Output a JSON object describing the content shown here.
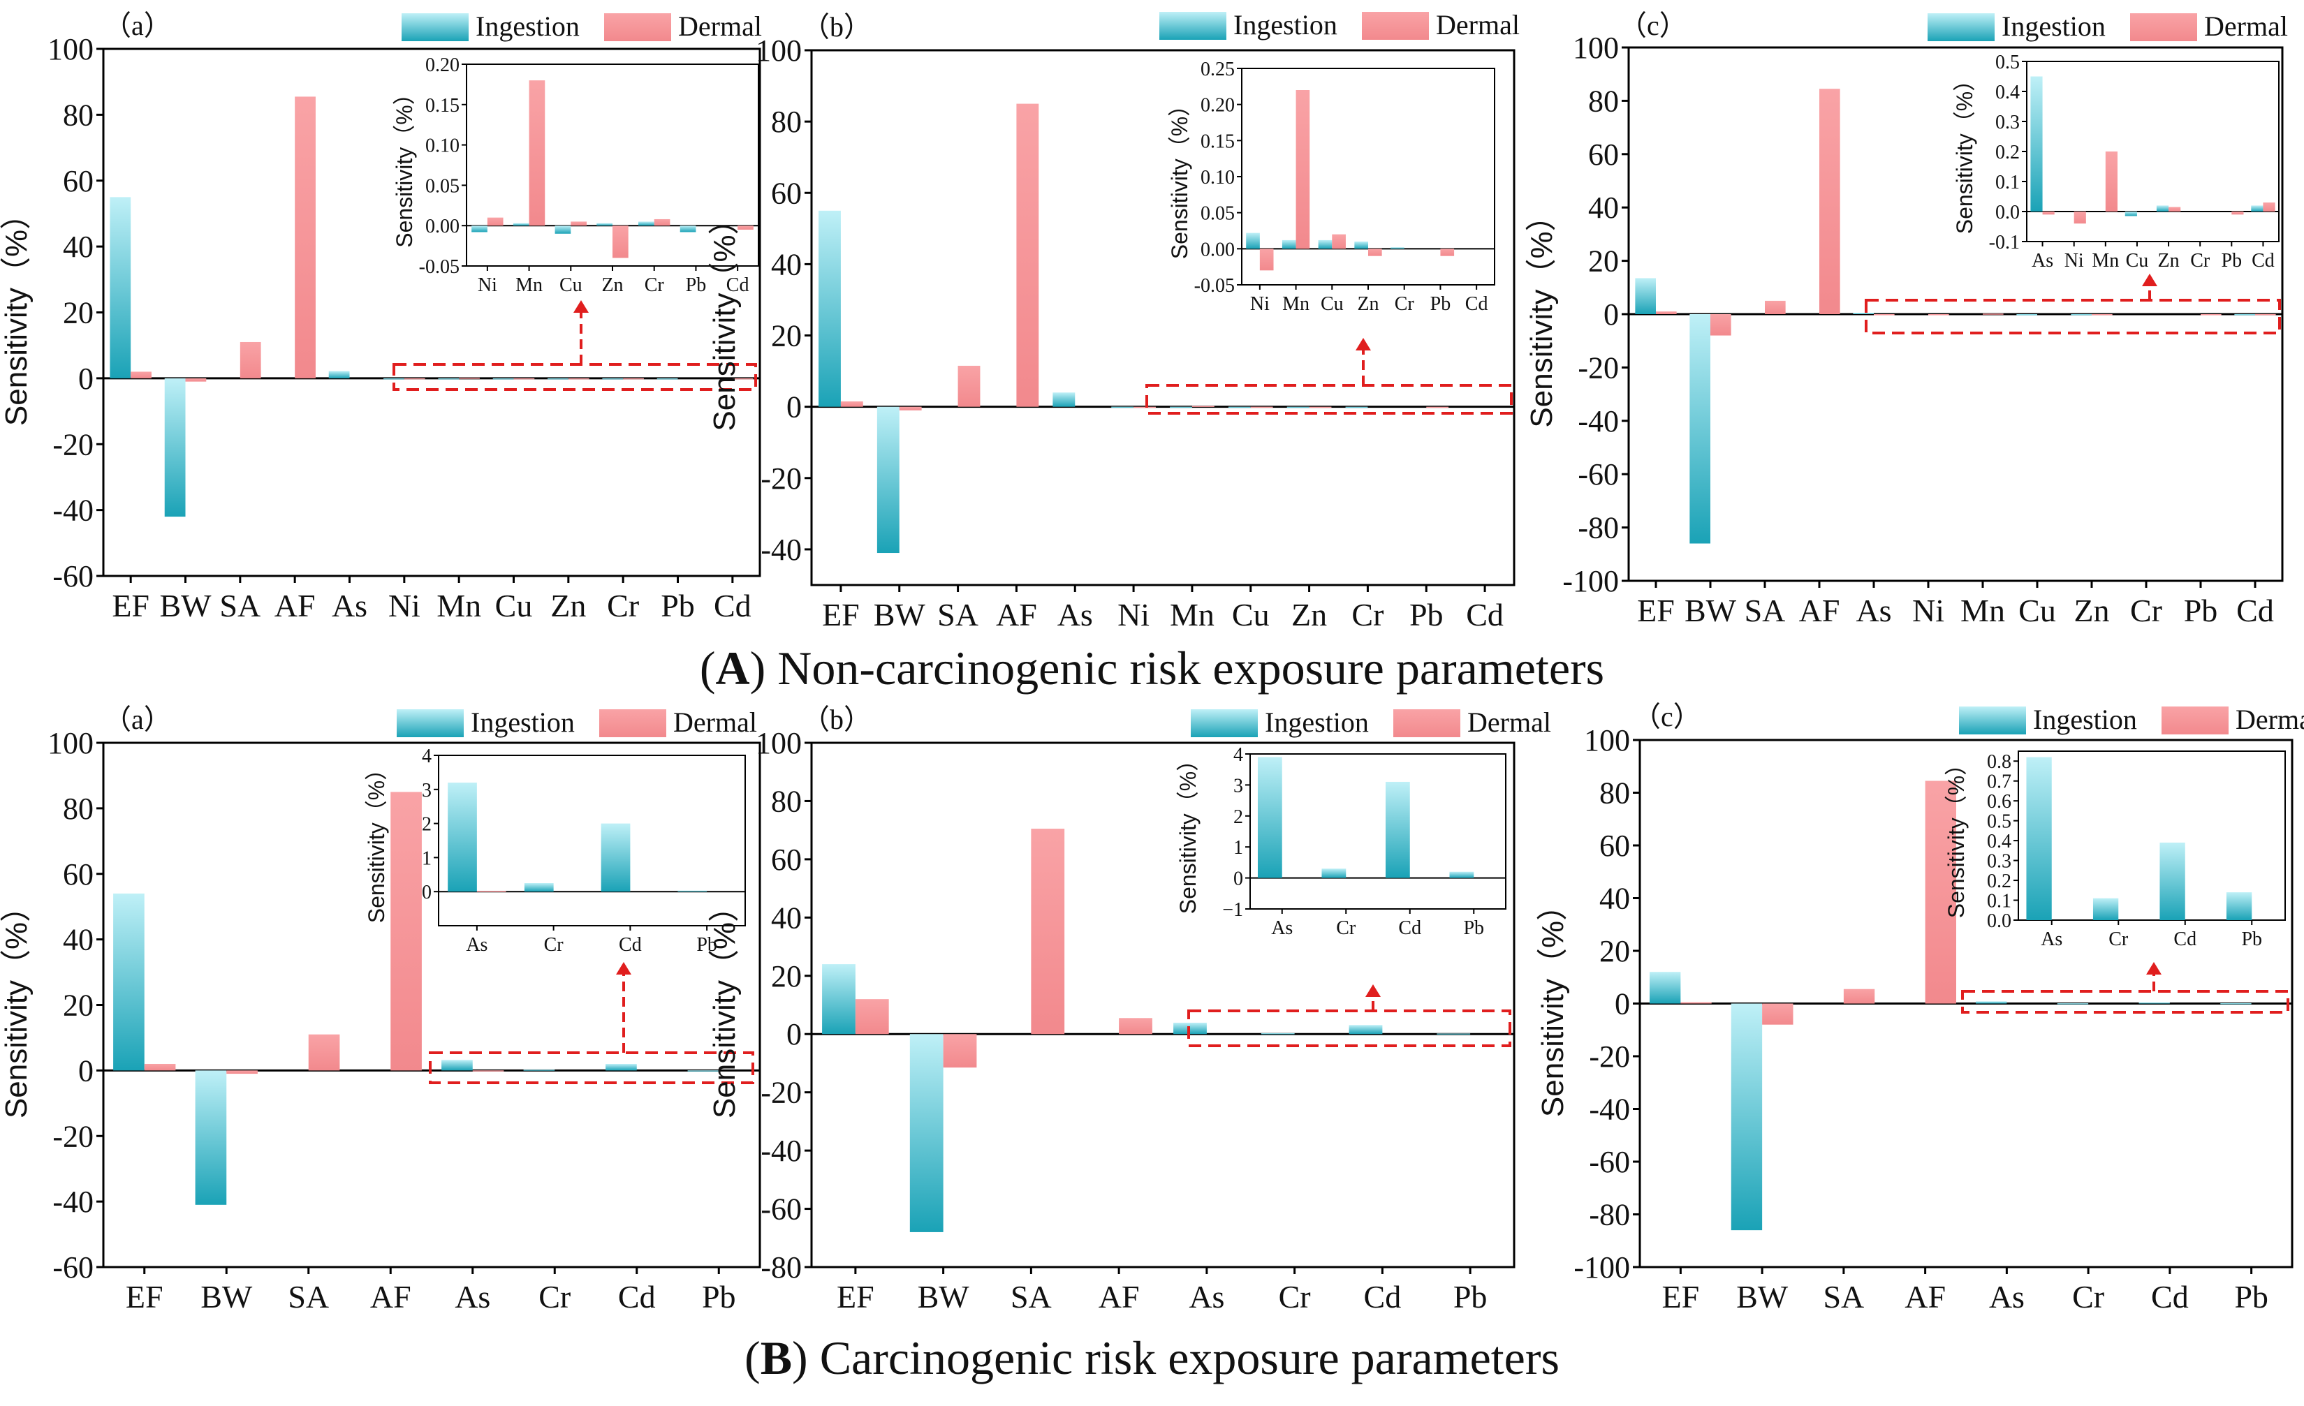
{
  "colors": {
    "ingestion_top": "#bff0f7",
    "ingestion_bottom": "#1aa2b6",
    "dermal_top": "#f9a3a6",
    "dermal_bottom": "#f2898d",
    "dashed": "#e01e1e",
    "axis": "#000000"
  },
  "titles": {
    "A": {
      "letter": "A",
      "text": "Non-carcinogenic risk exposure parameters"
    },
    "B": {
      "letter": "B",
      "text": "Carcinogenic risk exposure parameters"
    }
  },
  "chart_data": [
    {
      "id": "A-a",
      "type": "bar",
      "panel_label": "（a）",
      "legend": [
        "Ingestion",
        "Dermal"
      ],
      "legend_placement": "top-right",
      "ylabel": "Sensitivity（%）",
      "ylim": [
        -60,
        100
      ],
      "yticks": [
        -60,
        -40,
        -20,
        0,
        20,
        40,
        60,
        80,
        100
      ],
      "categories": [
        "EF",
        "BW",
        "SA",
        "AF",
        "As",
        "Ni",
        "Mn",
        "Cu",
        "Zn",
        "Cr",
        "Pb",
        "Cd"
      ],
      "series": [
        {
          "name": "Ingestion",
          "values": [
            55,
            -42,
            0,
            0,
            2.2,
            -0.008,
            0.003,
            -0.01,
            0.003,
            0.005,
            -0.008,
            0
          ]
        },
        {
          "name": "Dermal",
          "values": [
            2,
            -1,
            11,
            85.5,
            0,
            0.01,
            0.18,
            0.005,
            -0.04,
            0.008,
            0,
            -0.005
          ]
        }
      ],
      "inset": {
        "ylabel": "Sensitivity（%）",
        "ylim": [
          -0.05,
          0.2
        ],
        "yticks": [
          -0.05,
          0.0,
          0.05,
          0.1,
          0.15,
          0.2
        ],
        "ytick_labels": [
          "-0.05",
          "0.00",
          "0.05",
          "0.10",
          "0.15",
          "0.20"
        ],
        "categories": [
          "Ni",
          "Mn",
          "Cu",
          "Zn",
          "Cr",
          "Pb",
          "Cd"
        ],
        "series": [
          {
            "name": "Ingestion",
            "values": [
              -0.008,
              0.003,
              -0.01,
              0.003,
              0.005,
              -0.008,
              0
            ]
          },
          {
            "name": "Dermal",
            "values": [
              0.01,
              0.18,
              0.005,
              -0.04,
              0.008,
              0,
              -0.005
            ]
          }
        ]
      }
    },
    {
      "id": "A-b",
      "type": "bar",
      "panel_label": "（b）",
      "legend": [
        "Ingestion",
        "Dermal"
      ],
      "legend_placement": "top-right",
      "ylabel": "Sensitivity（%）",
      "ylim": [
        -50,
        100
      ],
      "yticks": [
        -40,
        -20,
        0,
        20,
        40,
        60,
        80,
        100
      ],
      "categories": [
        "EF",
        "BW",
        "SA",
        "AF",
        "As",
        "Ni",
        "Mn",
        "Cu",
        "Zn",
        "Cr",
        "Pb",
        "Cd"
      ],
      "series": [
        {
          "name": "Ingestion",
          "values": [
            55,
            -41,
            0,
            0,
            4,
            0.022,
            0.012,
            0.012,
            0.01,
            0.002,
            0,
            0
          ]
        },
        {
          "name": "Dermal",
          "values": [
            1.5,
            -1,
            11.5,
            85,
            0,
            -0.03,
            0.22,
            0.02,
            -0.01,
            0,
            -0.01,
            0
          ]
        }
      ],
      "inset": {
        "ylabel": "Sensitivity（%）",
        "ylim": [
          -0.05,
          0.25
        ],
        "yticks": [
          -0.05,
          0.0,
          0.05,
          0.1,
          0.15,
          0.2,
          0.25
        ],
        "ytick_labels": [
          "-0.05",
          "0.00",
          "0.05",
          "0.10",
          "0.15",
          "0.20",
          "0.25"
        ],
        "categories": [
          "Ni",
          "Mn",
          "Cu",
          "Zn",
          "Cr",
          "Pb",
          "Cd"
        ],
        "series": [
          {
            "name": "Ingestion",
            "values": [
              0.022,
              0.012,
              0.012,
              0.01,
              0.002,
              0,
              0
            ]
          },
          {
            "name": "Dermal",
            "values": [
              -0.03,
              0.22,
              0.02,
              -0.01,
              0,
              -0.01,
              0
            ]
          }
        ]
      }
    },
    {
      "id": "A-c",
      "type": "bar",
      "panel_label": "（c）",
      "legend": [
        "Ingestion",
        "Dermal"
      ],
      "legend_placement": "top-right",
      "ylabel": "Sensitivity（%）",
      "ylim": [
        -100,
        100
      ],
      "yticks": [
        -100,
        -80,
        -60,
        -40,
        -20,
        0,
        20,
        40,
        60,
        80,
        100
      ],
      "categories": [
        "EF",
        "BW",
        "SA",
        "AF",
        "As",
        "Ni",
        "Mn",
        "Cu",
        "Zn",
        "Cr",
        "Pb",
        "Cd"
      ],
      "series": [
        {
          "name": "Ingestion",
          "values": [
            13.5,
            -86,
            0,
            0,
            0.45,
            0,
            0,
            -0.015,
            0.02,
            0,
            0,
            0.02
          ]
        },
        {
          "name": "Dermal",
          "values": [
            1,
            -8,
            5,
            84.5,
            -0.01,
            -0.04,
            0.2,
            0,
            0.015,
            0,
            -0.01,
            0.03
          ]
        }
      ],
      "inset": {
        "ylabel": "Sensitivity（%）",
        "ylim": [
          -0.1,
          0.5
        ],
        "yticks": [
          -0.1,
          0.0,
          0.1,
          0.2,
          0.3,
          0.4,
          0.5
        ],
        "ytick_labels": [
          "-0.1",
          "0.0",
          "0.1",
          "0.2",
          "0.3",
          "0.4",
          "0.5"
        ],
        "categories": [
          "As",
          "Ni",
          "Mn",
          "Cu",
          "Zn",
          "Cr",
          "Pb",
          "Cd"
        ],
        "series": [
          {
            "name": "Ingestion",
            "values": [
              0.45,
              0,
              0,
              -0.015,
              0.02,
              0,
              0,
              0.02
            ]
          },
          {
            "name": "Dermal",
            "values": [
              -0.01,
              -0.04,
              0.2,
              0,
              0.015,
              0,
              -0.01,
              0.03
            ]
          }
        ]
      }
    },
    {
      "id": "B-a",
      "type": "bar",
      "panel_label": "（a）",
      "legend": [
        "Ingestion",
        "Dermal"
      ],
      "legend_placement": "top-right",
      "ylabel": "Sensitivity（%）",
      "ylim": [
        -60,
        100
      ],
      "yticks": [
        -60,
        -40,
        -20,
        0,
        20,
        40,
        60,
        80,
        100
      ],
      "categories": [
        "EF",
        "BW",
        "SA",
        "AF",
        "As",
        "Cr",
        "Cd",
        "Pb"
      ],
      "series": [
        {
          "name": "Ingestion",
          "values": [
            54,
            -41,
            0,
            0,
            3.2,
            0.25,
            2,
            0.03
          ]
        },
        {
          "name": "Dermal",
          "values": [
            2,
            -1,
            11,
            85,
            0.02,
            0,
            0,
            0
          ]
        }
      ],
      "inset": {
        "ylabel": "Sensitivity（%）",
        "ylim": [
          -1,
          4
        ],
        "yticks": [
          0,
          1,
          2,
          3,
          4
        ],
        "ytick_labels": [
          "0",
          "1",
          "2",
          "3",
          "4"
        ],
        "categories": [
          "As",
          "Cr",
          "Cd",
          "Pb"
        ],
        "series": [
          {
            "name": "Ingestion",
            "values": [
              3.2,
              0.25,
              2,
              0.03
            ]
          },
          {
            "name": "Dermal",
            "values": [
              0.02,
              0,
              0,
              0
            ]
          }
        ]
      }
    },
    {
      "id": "B-b",
      "type": "bar",
      "panel_label": "（b）",
      "legend": [
        "Ingestion",
        "Dermal"
      ],
      "legend_placement": "top-right",
      "ylabel": "Sensitivity（%）",
      "ylim": [
        -80,
        100
      ],
      "yticks": [
        -80,
        -60,
        -40,
        -20,
        0,
        20,
        40,
        60,
        80,
        100
      ],
      "categories": [
        "EF",
        "BW",
        "SA",
        "AF",
        "As",
        "Cr",
        "Cd",
        "Pb"
      ],
      "series": [
        {
          "name": "Ingestion",
          "values": [
            24,
            -68,
            0,
            0,
            3.9,
            0.3,
            3.1,
            0.2
          ]
        },
        {
          "name": "Dermal",
          "values": [
            12,
            -11.5,
            70.5,
            5.5,
            0,
            0,
            0,
            0
          ]
        }
      ],
      "inset": {
        "ylabel": "Sensitivity（%）",
        "ylim": [
          -1,
          4
        ],
        "yticks": [
          -1,
          0,
          1,
          2,
          3,
          4
        ],
        "ytick_labels": [
          "−1",
          "0",
          "1",
          "2",
          "3",
          "4"
        ],
        "categories": [
          "As",
          "Cr",
          "Cd",
          "Pb"
        ],
        "series": [
          {
            "name": "Ingestion",
            "values": [
              3.9,
              0.3,
              3.1,
              0.2
            ]
          },
          {
            "name": "Dermal",
            "values": [
              0,
              0,
              0,
              0
            ]
          }
        ]
      }
    },
    {
      "id": "B-c",
      "type": "bar",
      "panel_label": "（c）",
      "legend": [
        "Ingestion",
        "Dermal"
      ],
      "legend_placement": "top-right",
      "ylabel": "Sensitivity（%）",
      "ylim": [
        -100,
        100
      ],
      "yticks": [
        -100,
        -80,
        -60,
        -40,
        -20,
        0,
        20,
        40,
        60,
        80,
        100
      ],
      "categories": [
        "EF",
        "BW",
        "SA",
        "AF",
        "As",
        "Cr",
        "Cd",
        "Pb"
      ],
      "series": [
        {
          "name": "Ingestion",
          "values": [
            12,
            -86,
            0,
            0,
            0.82,
            0.11,
            0.39,
            0.14
          ]
        },
        {
          "name": "Dermal",
          "values": [
            0.5,
            -8,
            5.5,
            84.5,
            0,
            0,
            0,
            0
          ]
        }
      ],
      "inset": {
        "ylabel": "Sensitivity（%）",
        "ylim": [
          0,
          0.85
        ],
        "yticks": [
          0.0,
          0.1,
          0.2,
          0.3,
          0.4,
          0.5,
          0.6,
          0.7,
          0.8
        ],
        "ytick_labels": [
          "0.0",
          "0.1",
          "0.2",
          "0.3",
          "0.4",
          "0.5",
          "0.6",
          "0.7",
          "0.8"
        ],
        "categories": [
          "As",
          "Cr",
          "Cd",
          "Pb"
        ],
        "series": [
          {
            "name": "Ingestion",
            "values": [
              0.82,
              0.11,
              0.39,
              0.14
            ]
          },
          {
            "name": "Dermal",
            "values": [
              0,
              0,
              0,
              0
            ]
          }
        ]
      }
    }
  ]
}
